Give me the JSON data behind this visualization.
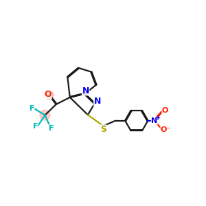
{
  "bg_color": "#ffffff",
  "bond_color": "#1a1a1a",
  "bond_width": 1.6,
  "dbo": 0.055,
  "atom_colors": {
    "N": "#0000ee",
    "S": "#aaaa00",
    "O": "#ff2200",
    "F": "#00bbbb",
    "C": "#1a1a1a"
  },
  "fs": 8.5
}
